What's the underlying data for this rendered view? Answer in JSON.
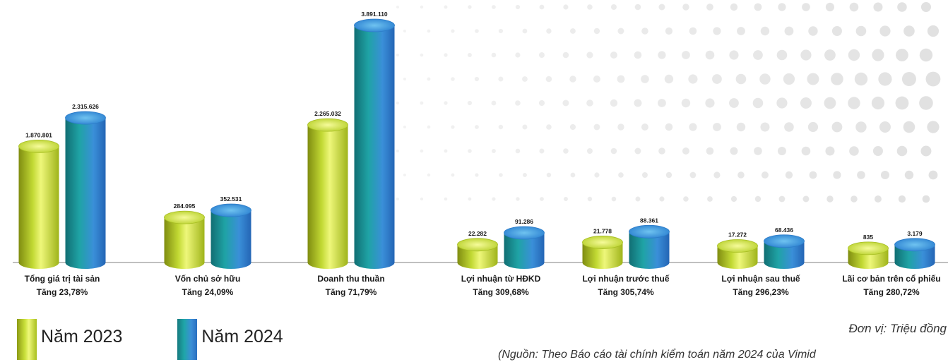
{
  "colors": {
    "year2023_dark": "#8c9a14",
    "year2023_light": "#eef77a",
    "year2024_dark": "#167a80",
    "year2024_light": "#3c8fd6",
    "baseline": "#9a9a9a",
    "dots": "#d9d9d9"
  },
  "chart_data": {
    "type": "bar",
    "style": "3d-cylinder",
    "categories": [
      {
        "name": "Tổng giá trị tài sản",
        "change": "Tăng 23,78%"
      },
      {
        "name": "Vốn chủ sở hữu",
        "change": "Tăng 24,09%"
      },
      {
        "name": "Doanh thu thuần",
        "change": "Tăng 71,79%"
      },
      {
        "name": "Lợi nhuận từ HĐKD",
        "change": "Tăng 309,68%"
      },
      {
        "name": "Lợi nhuận trước thuế",
        "change": "Tăng 305,74%"
      },
      {
        "name": "Lợi nhuận sau thuế",
        "change": "Tăng 296,23%"
      },
      {
        "name": "Lãi cơ bản trên cổ phiếu",
        "change": "Tăng 280,72%"
      }
    ],
    "series": [
      {
        "name": "Năm 2023",
        "values": [
          1870801,
          284095,
          2265032,
          22282,
          21778,
          17272,
          835
        ],
        "labels": [
          "1.870.801",
          "284.095",
          "2.265.032",
          "22.282",
          "21.778",
          "17.272",
          "835"
        ]
      },
      {
        "name": "Năm 2024",
        "values": [
          2315626,
          352531,
          3891110,
          91286,
          88361,
          68436,
          3179
        ],
        "labels": [
          "2.315.626",
          "352.531",
          "3.891.110",
          "91.286",
          "88.361",
          "68.436",
          "3.179"
        ]
      }
    ],
    "scale_note": "broken scale",
    "bar_fill_ratios": {
      "Năm 2023": [
        0.49,
        0.19,
        0.58,
        0.075,
        0.085,
        0.07,
        0.06
      ],
      "Năm 2024": [
        0.61,
        0.22,
        1.0,
        0.125,
        0.13,
        0.09,
        0.075
      ]
    },
    "legend_position": "bottom-left",
    "unit_label": "Đơn vị: Triệu đồng",
    "source_label": "(Nguồn: Theo Báo cáo tài chính kiểm toán năm 2024 của Vimid"
  }
}
